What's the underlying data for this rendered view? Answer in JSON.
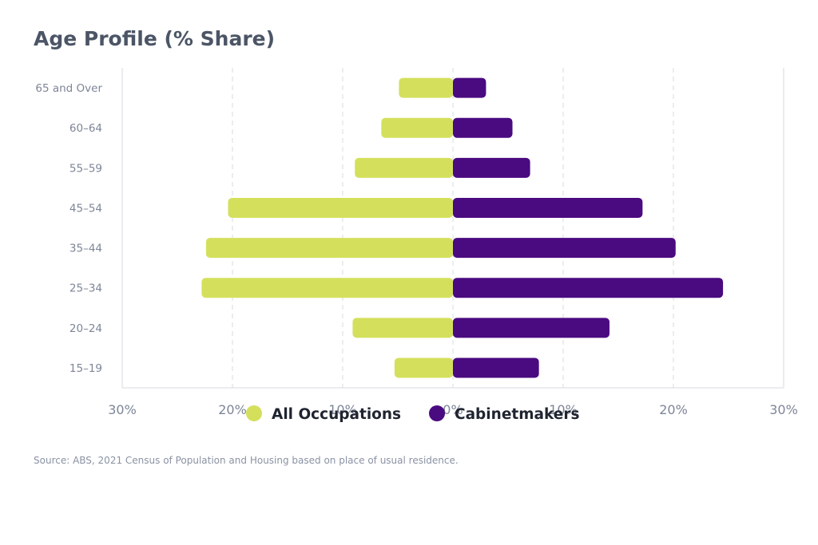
{
  "title": "Age Profile (% Share)",
  "source": "Source: ABS, 2021 Census of Population and Housing based on place of usual residence.",
  "colors": {
    "all_occupations": "#d4e05c",
    "cabinetmakers": "#4a0a80"
  },
  "chart_data": {
    "type": "bar",
    "orientation": "horizontal",
    "layout": "diverging",
    "title": "Age Profile (% Share)",
    "categories": [
      "65 and Over",
      "60-64",
      "55-59",
      "45-54",
      "35-44",
      "25-34",
      "20-24",
      "15-19"
    ],
    "series": [
      {
        "name": "All Occupations",
        "values": [
          4.9,
          6.5,
          8.9,
          20.4,
          22.4,
          22.8,
          9.1,
          5.3
        ]
      },
      {
        "name": "Cabinetmakers",
        "values": [
          3.0,
          5.4,
          7.0,
          17.2,
          20.2,
          24.5,
          14.2,
          7.8
        ]
      }
    ],
    "xlim": [
      -30,
      30
    ],
    "xticks": [
      "30%",
      "20%",
      "10%",
      "0%",
      "10%",
      "20%",
      "30%"
    ],
    "grid": true,
    "legend_position": "bottom"
  }
}
